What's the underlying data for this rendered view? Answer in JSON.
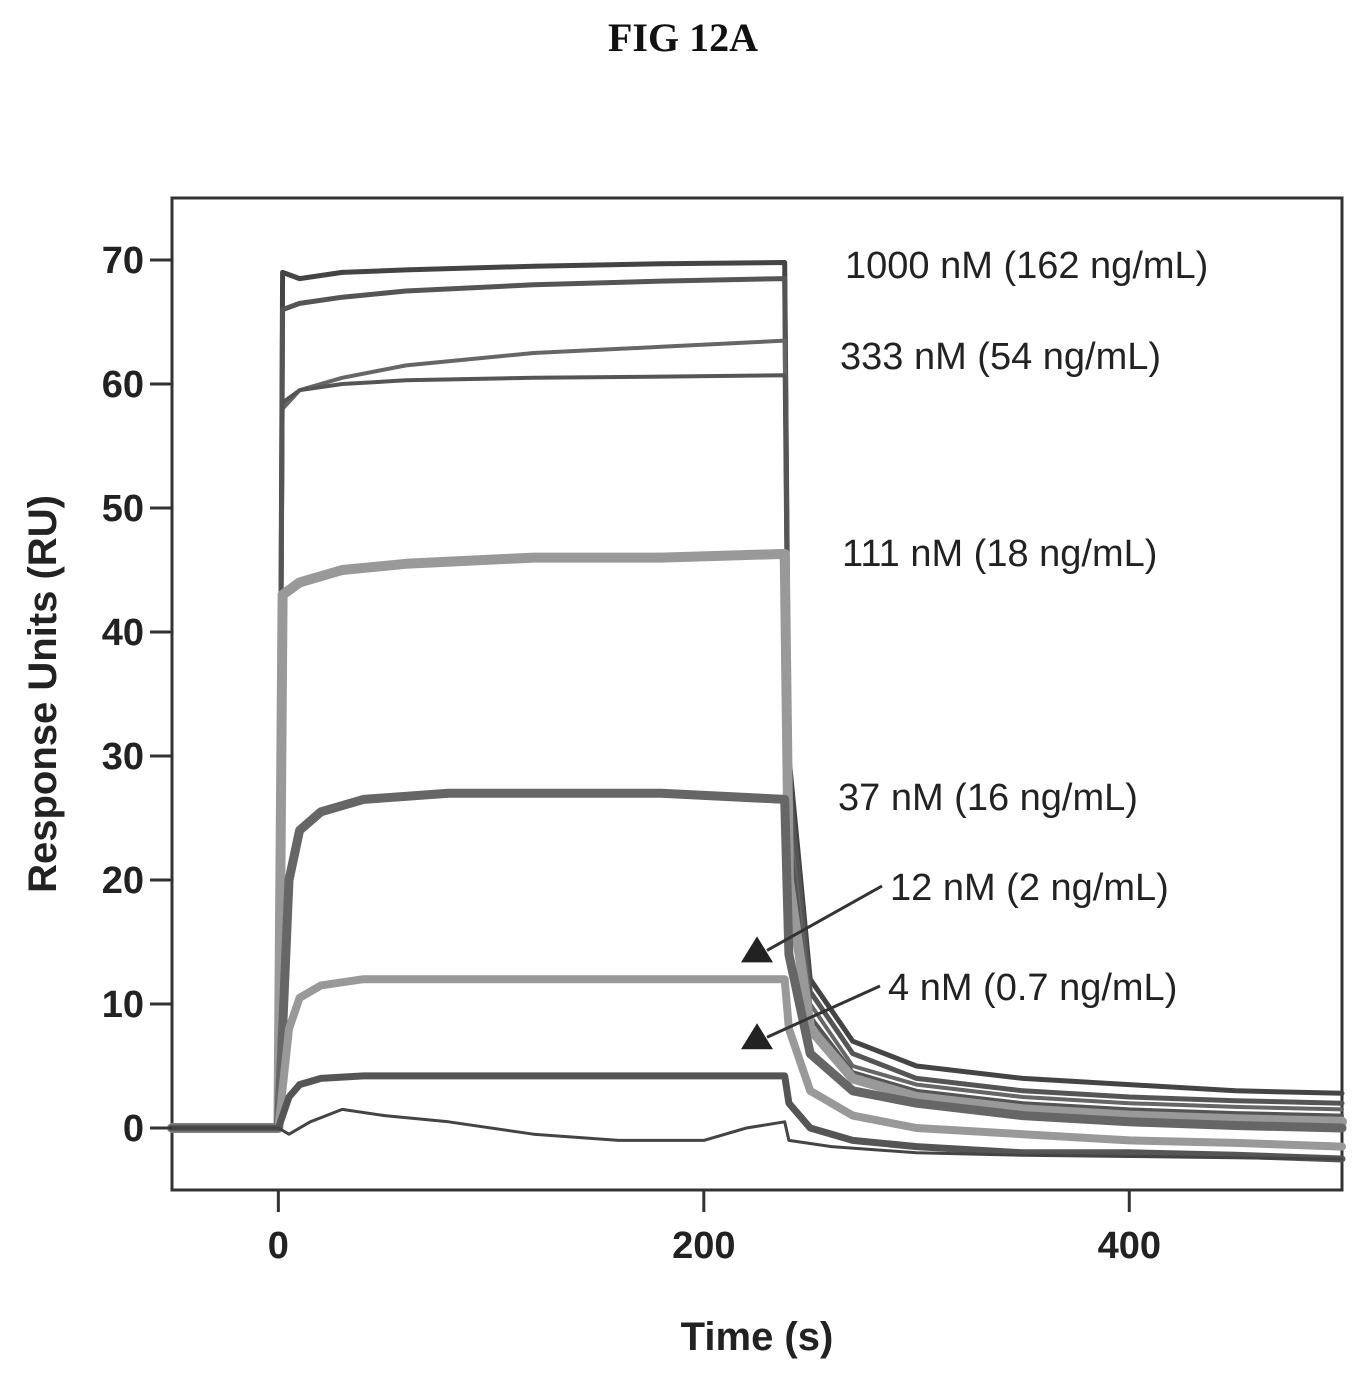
{
  "figure": {
    "title": "FIG 12A"
  },
  "chart_data": {
    "type": "line",
    "title": "FIG 12A",
    "xlabel": "Time (s)",
    "ylabel": "Response Units (RU)",
    "xlim": [
      -50,
      500
    ],
    "ylim": [
      -5,
      75
    ],
    "xticks": [
      0,
      200,
      400
    ],
    "yticks": [
      0,
      10,
      20,
      30,
      40,
      50,
      60,
      70
    ],
    "grid": false,
    "legend": "none",
    "series": [
      {
        "x": [
          -50,
          0,
          2,
          10,
          30,
          60,
          120,
          180,
          238,
          240,
          250,
          270,
          300,
          350,
          400,
          450,
          500
        ],
        "y": [
          0,
          0,
          69,
          68.5,
          69,
          69.2,
          69.5,
          69.7,
          69.8,
          30,
          12,
          7,
          5,
          4,
          3.5,
          3,
          2.8
        ]
      },
      {
        "x": [
          -50,
          0,
          2,
          10,
          30,
          60,
          120,
          180,
          238,
          240,
          250,
          270,
          300,
          350,
          400,
          450,
          500
        ],
        "y": [
          0,
          0,
          66,
          66.5,
          67,
          67.5,
          68,
          68.3,
          68.5,
          28,
          11,
          6,
          4,
          3,
          2.5,
          2.2,
          2
        ]
      },
      {
        "x": [
          -50,
          0,
          2,
          10,
          30,
          60,
          120,
          180,
          238,
          240,
          250,
          270,
          300,
          350,
          400,
          450,
          500
        ],
        "y": [
          0,
          0,
          58,
          59.5,
          60.5,
          61.5,
          62.5,
          63,
          63.5,
          25,
          10,
          5,
          3.5,
          2.5,
          2,
          1.7,
          1.5
        ]
      },
      {
        "x": [
          -50,
          0,
          2,
          10,
          30,
          60,
          120,
          180,
          238,
          240,
          250,
          270,
          300,
          350,
          400,
          450,
          500
        ],
        "y": [
          0,
          0,
          58.5,
          59.5,
          60,
          60.3,
          60.5,
          60.6,
          60.7,
          24,
          9,
          4.5,
          3,
          2,
          1.5,
          1.2,
          1
        ]
      },
      {
        "x": [
          -50,
          0,
          2,
          10,
          30,
          60,
          120,
          180,
          238,
          240,
          250,
          270,
          300,
          350,
          400,
          450,
          500
        ],
        "y": [
          0,
          0,
          43,
          44,
          45,
          45.5,
          46,
          46,
          46.3,
          20,
          8,
          4,
          2.5,
          1.5,
          1,
          0.7,
          0.5
        ]
      },
      {
        "x": [
          -50,
          0,
          5,
          10,
          20,
          40,
          80,
          120,
          180,
          238,
          240,
          250,
          270,
          300,
          350,
          400,
          450,
          500
        ],
        "y": [
          0,
          0,
          20,
          24,
          25.5,
          26.5,
          27,
          27,
          27,
          26.5,
          14,
          6,
          3,
          2,
          1,
          0.5,
          0.2,
          0
        ]
      },
      {
        "x": [
          -50,
          0,
          5,
          10,
          20,
          40,
          80,
          120,
          180,
          238,
          240,
          250,
          270,
          300,
          350,
          400,
          450,
          500
        ],
        "y": [
          0,
          0,
          8,
          10.5,
          11.5,
          12,
          12,
          12,
          12,
          12,
          8,
          3,
          1,
          0,
          -0.5,
          -1,
          -1.2,
          -1.5
        ]
      },
      {
        "x": [
          -50,
          0,
          5,
          10,
          20,
          40,
          80,
          120,
          180,
          238,
          240,
          250,
          270,
          300,
          350,
          400,
          450,
          500
        ],
        "y": [
          0,
          0,
          2.5,
          3.5,
          4,
          4.2,
          4.2,
          4.2,
          4.2,
          4.2,
          2,
          0,
          -1,
          -1.5,
          -2,
          -2,
          -2.2,
          -2.5
        ]
      },
      {
        "x": [
          -50,
          0,
          5,
          15,
          30,
          50,
          80,
          120,
          160,
          200,
          220,
          238,
          240,
          260,
          300,
          350,
          400,
          450,
          500
        ],
        "y": [
          0,
          0,
          -0.5,
          0.5,
          1.5,
          1,
          0.5,
          -0.5,
          -1,
          -1,
          0,
          0.5,
          -1,
          -1.5,
          -2,
          -2.2,
          -2.3,
          -2.4,
          -2.5
        ]
      }
    ],
    "annotations": [
      {
        "text": "1000 nM (162 ng/mL)"
      },
      {
        "text": "333 nM (54 ng/mL)"
      },
      {
        "text": "111 nM (18 ng/mL)"
      },
      {
        "text": "37 nM (16 ng/mL)"
      },
      {
        "text": "12 nM (2 ng/mL)",
        "arrow_to": [
          225,
          14
        ]
      },
      {
        "text": "4 nM (0.7 ng/mL)",
        "arrow_to": [
          225,
          7
        ]
      }
    ]
  }
}
